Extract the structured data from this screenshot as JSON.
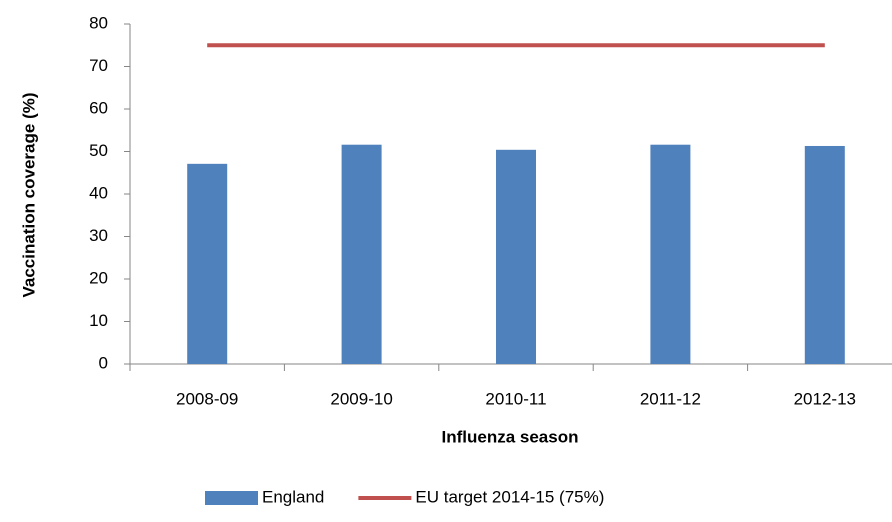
{
  "chart_data": {
    "type": "bar",
    "x_label": "Influenza season",
    "y_label": "Vaccination coverage (%)",
    "categories": [
      "2008-09",
      "2009-10",
      "2010-11",
      "2011-12",
      "2012-13"
    ],
    "series": [
      {
        "name": "England",
        "color": "#4f81bd",
        "type": "bar",
        "values": [
          47.1,
          51.6,
          50.4,
          51.6,
          51.3
        ]
      },
      {
        "name": "EU target 2014-15 (75%)",
        "color": "#c0504d",
        "type": "line",
        "values": [
          75,
          75,
          75,
          75,
          75
        ]
      }
    ],
    "ylim": [
      0,
      80
    ],
    "yticks": [
      0,
      10,
      20,
      30,
      40,
      50,
      60,
      70,
      80
    ],
    "grid": false,
    "legend": "bottom"
  }
}
